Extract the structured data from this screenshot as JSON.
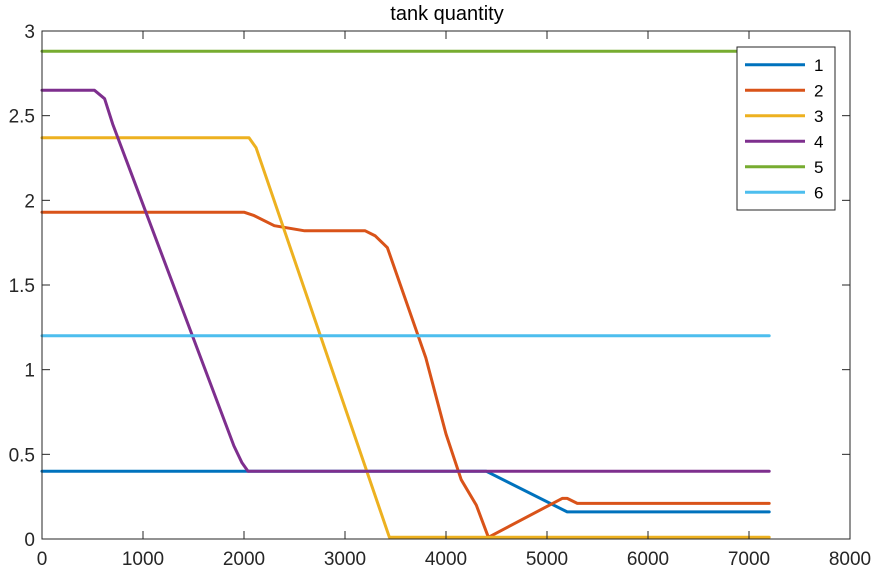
{
  "chart_data": {
    "type": "line",
    "title": "tank quantity",
    "xlabel": "",
    "ylabel": "",
    "xlim": [
      0,
      8000
    ],
    "ylim": [
      0,
      3
    ],
    "xticks": [
      0,
      1000,
      2000,
      3000,
      4000,
      5000,
      6000,
      7000,
      8000
    ],
    "yticks": [
      0,
      0.5,
      1,
      1.5,
      2,
      2.5,
      3
    ],
    "xtick_labels": [
      "0",
      "1000",
      "2000",
      "3000",
      "4000",
      "5000",
      "6000",
      "7000",
      "8000"
    ],
    "ytick_labels": [
      "0",
      "0.5",
      "1",
      "1.5",
      "2",
      "2.5",
      "3"
    ],
    "grid": false,
    "legend_position": "top-right",
    "series": [
      {
        "name": "1",
        "color": "#0072BD",
        "x": [
          0,
          2000,
          3500,
          4400,
          5200,
          7200
        ],
        "y": [
          0.4,
          0.4,
          0.4,
          0.4,
          0.16,
          0.16
        ]
      },
      {
        "name": "2",
        "color": "#D95319",
        "x": [
          0,
          2000,
          2100,
          2300,
          2600,
          3200,
          3300,
          3420,
          3800,
          4000,
          4150,
          4300,
          4420,
          5150,
          5200,
          5300,
          7200
        ],
        "y": [
          1.93,
          1.93,
          1.91,
          1.85,
          1.82,
          1.82,
          1.79,
          1.72,
          1.07,
          0.62,
          0.35,
          0.2,
          0.01,
          0.24,
          0.24,
          0.21,
          0.21
        ]
      },
      {
        "name": "3",
        "color": "#EDB120",
        "x": [
          0,
          2050,
          2120,
          3440,
          7200
        ],
        "y": [
          2.37,
          2.37,
          2.31,
          0.01,
          0.01
        ]
      },
      {
        "name": "4",
        "color": "#7E2F8E",
        "x": [
          0,
          520,
          620,
          700,
          1900,
          1980,
          2040,
          7200
        ],
        "y": [
          2.65,
          2.65,
          2.6,
          2.45,
          0.55,
          0.45,
          0.4,
          0.4
        ]
      },
      {
        "name": "5",
        "color": "#77AC30",
        "x": [
          0,
          7200
        ],
        "y": [
          2.88,
          2.88
        ]
      },
      {
        "name": "6",
        "color": "#4DBEEE",
        "x": [
          0,
          7200
        ],
        "y": [
          1.2,
          1.2
        ]
      }
    ]
  }
}
